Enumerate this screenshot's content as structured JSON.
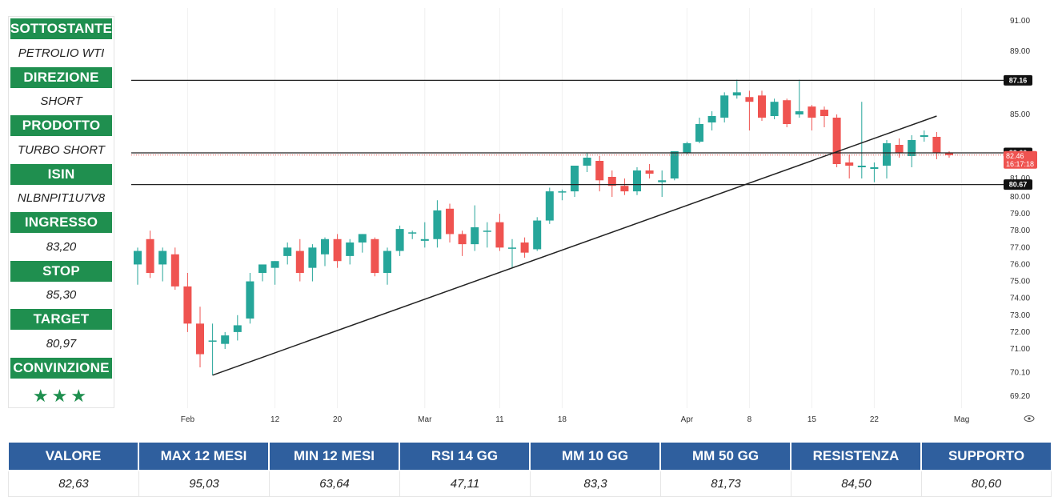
{
  "info": [
    {
      "label": "SOTTOSTANTE",
      "value": "PETROLIO WTI"
    },
    {
      "label": "DIREZIONE",
      "value": "SHORT"
    },
    {
      "label": "PRODOTTO",
      "value": "TURBO SHORT"
    },
    {
      "label": "ISIN",
      "value": "NLBNPIT1U7V8"
    },
    {
      "label": "INGRESSO",
      "value": "83,20"
    },
    {
      "label": "STOP",
      "value": "85,30"
    },
    {
      "label": "TARGET",
      "value": "80,97"
    },
    {
      "label": "CONVINZIONE",
      "value": "★★★"
    }
  ],
  "stats": {
    "headers": [
      "VALORE",
      "MAX 12 MESI",
      "MIN 12 MESI",
      "RSI 14 GG",
      "MM 10 GG",
      "MM 50 GG",
      "RESISTENZA",
      "SUPPORTO"
    ],
    "values": [
      "82,63",
      "95,03",
      "63,64",
      "47,11",
      "83,3",
      "81,73",
      "84,50",
      "80,60"
    ]
  },
  "colors": {
    "up": "#26a69a",
    "down": "#ef5350",
    "label_green": "#1f8f4f",
    "table_blue": "#2f5f9e"
  },
  "chart_data": {
    "type": "candlestick",
    "x_tick_labels": [
      "Feb",
      "12",
      "20",
      "Mar",
      "11",
      "18",
      "Apr",
      "8",
      "15",
      "22",
      "Mag"
    ],
    "x_tick_index": [
      4,
      11,
      16,
      23,
      29,
      34,
      44,
      49,
      54,
      59,
      66
    ],
    "y_tick_labels": [
      "91.00",
      "89.00",
      "85.00",
      "81.00",
      "80.00",
      "79.00",
      "78.00",
      "77.00",
      "76.00",
      "75.00",
      "74.00",
      "73.00",
      "72.00",
      "71.00",
      "70.10",
      "69.20"
    ],
    "y_tick_values": [
      91.0,
      89.0,
      85.0,
      81.0,
      80.0,
      79.0,
      78.0,
      77.0,
      76.0,
      75.0,
      74.0,
      73.0,
      72.0,
      71.0,
      70.1,
      69.2
    ],
    "horizontal_levels": [
      {
        "value": 87.16,
        "label": "87.16",
        "style": "solid"
      },
      {
        "value": 82.6,
        "label": "82.60",
        "style": "solid"
      },
      {
        "value": 80.67,
        "label": "80.67",
        "style": "solid"
      }
    ],
    "last_price": {
      "label": "82.46",
      "countdown": "16:17:18",
      "value": 82.46
    },
    "trendline": {
      "from": {
        "index": 6,
        "value": 70.0
      },
      "to": {
        "index": 64,
        "value": 84.9
      }
    },
    "candles": [
      {
        "o": 76.0,
        "h": 77.0,
        "l": 74.8,
        "c": 76.8
      },
      {
        "o": 77.5,
        "h": 78.0,
        "l": 75.2,
        "c": 75.5
      },
      {
        "o": 76.0,
        "h": 77.0,
        "l": 75.0,
        "c": 76.8
      },
      {
        "o": 76.6,
        "h": 77.0,
        "l": 74.5,
        "c": 74.7
      },
      {
        "o": 74.7,
        "h": 75.5,
        "l": 72.0,
        "c": 72.5
      },
      {
        "o": 72.5,
        "h": 73.5,
        "l": 70.3,
        "c": 70.8
      },
      {
        "o": 71.5,
        "h": 72.5,
        "l": 70.0,
        "c": 71.5
      },
      {
        "o": 71.3,
        "h": 72.0,
        "l": 71.0,
        "c": 71.8
      },
      {
        "o": 72.0,
        "h": 73.0,
        "l": 71.5,
        "c": 72.4
      },
      {
        "o": 72.8,
        "h": 75.5,
        "l": 72.5,
        "c": 75.0
      },
      {
        "o": 75.5,
        "h": 76.0,
        "l": 75.0,
        "c": 76.0
      },
      {
        "o": 75.8,
        "h": 76.2,
        "l": 74.8,
        "c": 76.2
      },
      {
        "o": 76.5,
        "h": 77.3,
        "l": 76.0,
        "c": 77.0
      },
      {
        "o": 76.8,
        "h": 77.5,
        "l": 75.0,
        "c": 75.5
      },
      {
        "o": 75.8,
        "h": 77.2,
        "l": 75.0,
        "c": 77.0
      },
      {
        "o": 76.6,
        "h": 77.6,
        "l": 75.9,
        "c": 77.5
      },
      {
        "o": 77.5,
        "h": 77.8,
        "l": 75.8,
        "c": 76.2
      },
      {
        "o": 76.5,
        "h": 77.5,
        "l": 76.0,
        "c": 77.3
      },
      {
        "o": 77.3,
        "h": 77.8,
        "l": 76.7,
        "c": 77.8
      },
      {
        "o": 77.5,
        "h": 77.6,
        "l": 75.3,
        "c": 75.5
      },
      {
        "o": 75.5,
        "h": 77.0,
        "l": 74.8,
        "c": 76.8
      },
      {
        "o": 76.8,
        "h": 78.3,
        "l": 76.5,
        "c": 78.1
      },
      {
        "o": 77.9,
        "h": 78.0,
        "l": 77.5,
        "c": 77.9
      },
      {
        "o": 77.4,
        "h": 78.5,
        "l": 77.0,
        "c": 77.5
      },
      {
        "o": 77.5,
        "h": 79.8,
        "l": 77.0,
        "c": 79.2
      },
      {
        "o": 79.3,
        "h": 79.6,
        "l": 77.3,
        "c": 77.8
      },
      {
        "o": 77.8,
        "h": 78.0,
        "l": 76.5,
        "c": 77.2
      },
      {
        "o": 77.2,
        "h": 79.5,
        "l": 76.8,
        "c": 78.2
      },
      {
        "o": 78.0,
        "h": 78.5,
        "l": 77.0,
        "c": 78.0
      },
      {
        "o": 78.5,
        "h": 79.0,
        "l": 76.8,
        "c": 77.0
      },
      {
        "o": 77.0,
        "h": 77.5,
        "l": 75.8,
        "c": 77.0
      },
      {
        "o": 77.3,
        "h": 77.6,
        "l": 76.4,
        "c": 76.7
      },
      {
        "o": 76.9,
        "h": 78.8,
        "l": 76.8,
        "c": 78.6
      },
      {
        "o": 78.6,
        "h": 80.5,
        "l": 78.4,
        "c": 80.3
      },
      {
        "o": 80.3,
        "h": 80.4,
        "l": 79.8,
        "c": 80.3
      },
      {
        "o": 80.3,
        "h": 81.8,
        "l": 80.0,
        "c": 81.8
      },
      {
        "o": 81.8,
        "h": 82.6,
        "l": 81.4,
        "c": 82.3
      },
      {
        "o": 82.1,
        "h": 82.4,
        "l": 80.3,
        "c": 80.9
      },
      {
        "o": 81.1,
        "h": 81.5,
        "l": 80.0,
        "c": 80.6
      },
      {
        "o": 80.6,
        "h": 81.0,
        "l": 80.1,
        "c": 80.3
      },
      {
        "o": 80.3,
        "h": 81.7,
        "l": 80.1,
        "c": 81.5
      },
      {
        "o": 81.5,
        "h": 81.9,
        "l": 81.0,
        "c": 81.3
      },
      {
        "o": 80.8,
        "h": 81.5,
        "l": 80.0,
        "c": 80.9
      },
      {
        "o": 81.0,
        "h": 82.7,
        "l": 80.9,
        "c": 82.7
      },
      {
        "o": 82.6,
        "h": 83.3,
        "l": 82.5,
        "c": 83.2
      },
      {
        "o": 83.3,
        "h": 84.8,
        "l": 83.2,
        "c": 84.4
      },
      {
        "o": 84.5,
        "h": 85.2,
        "l": 84.0,
        "c": 84.9
      },
      {
        "o": 84.8,
        "h": 86.4,
        "l": 84.5,
        "c": 86.2
      },
      {
        "o": 86.2,
        "h": 87.2,
        "l": 86.0,
        "c": 86.4
      },
      {
        "o": 86.1,
        "h": 86.5,
        "l": 84.0,
        "c": 85.8
      },
      {
        "o": 86.2,
        "h": 86.5,
        "l": 84.6,
        "c": 84.8
      },
      {
        "o": 84.9,
        "h": 86.0,
        "l": 84.7,
        "c": 85.8
      },
      {
        "o": 85.9,
        "h": 86.0,
        "l": 84.2,
        "c": 84.4
      },
      {
        "o": 85.0,
        "h": 87.2,
        "l": 84.8,
        "c": 85.2
      },
      {
        "o": 85.5,
        "h": 85.6,
        "l": 84.0,
        "c": 84.8
      },
      {
        "o": 85.3,
        "h": 85.5,
        "l": 84.2,
        "c": 84.9
      },
      {
        "o": 84.8,
        "h": 85.0,
        "l": 81.7,
        "c": 81.9
      },
      {
        "o": 82.0,
        "h": 82.5,
        "l": 81.0,
        "c": 81.8
      },
      {
        "o": 81.7,
        "h": 85.8,
        "l": 81.0,
        "c": 81.8
      },
      {
        "o": 81.6,
        "h": 82.0,
        "l": 80.8,
        "c": 81.7
      },
      {
        "o": 81.8,
        "h": 83.4,
        "l": 81.0,
        "c": 83.2
      },
      {
        "o": 83.1,
        "h": 83.5,
        "l": 82.3,
        "c": 82.6
      },
      {
        "o": 82.4,
        "h": 83.7,
        "l": 81.7,
        "c": 83.4
      },
      {
        "o": 83.6,
        "h": 84.0,
        "l": 83.3,
        "c": 83.7
      },
      {
        "o": 83.6,
        "h": 83.9,
        "l": 82.2,
        "c": 82.6
      },
      {
        "o": 82.6,
        "h": 82.7,
        "l": 82.3,
        "c": 82.46
      }
    ]
  }
}
